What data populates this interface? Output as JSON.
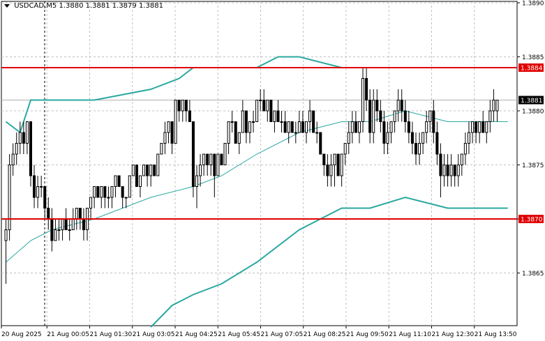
{
  "header": {
    "symbol_label": "USDCAD,M5",
    "ohlc": "1.3880 1.3881 1.3879 1.3881"
  },
  "chart_data": {
    "type": "candlestick",
    "title": "USDCAD,M5",
    "ylim": [
      1.386,
      1.389
    ],
    "y_ticks": [
      "1.3890",
      "1.3885",
      "1.3880",
      "1.3875",
      "1.3870",
      "1.3865"
    ],
    "x_ticks": [
      "20 Aug 2025",
      "21 Aug 00:05",
      "21 Aug 01:30",
      "21 Aug 03:05",
      "21 Aug 04:25",
      "21 Aug 05:45",
      "21 Aug 07:05",
      "21 Aug 08:25",
      "21 Aug 09:50",
      "21 Aug 11:10",
      "21 Aug 12:30",
      "21 Aug 13:50"
    ],
    "horizontal_levels": [
      {
        "value": 1.3884,
        "label": "1.3884",
        "color": "#e00000"
      },
      {
        "value": 1.387,
        "label": "1.3870",
        "color": "#e00000"
      }
    ],
    "current_price": {
      "value": 1.3881,
      "label": "1.3881"
    },
    "grid": true,
    "candles": [
      [
        1.3868,
        1.387,
        1.3864,
        1.3869
      ],
      [
        1.3869,
        1.3876,
        1.3868,
        1.3875
      ],
      [
        1.3875,
        1.3877,
        1.3874,
        1.3876
      ],
      [
        1.3876,
        1.3878,
        1.3875,
        1.3877
      ],
      [
        1.3877,
        1.3879,
        1.3876,
        1.3878
      ],
      [
        1.3878,
        1.3879,
        1.3876,
        1.3877
      ],
      [
        1.3877,
        1.3879,
        1.3876,
        1.3879
      ],
      [
        1.3879,
        1.3879,
        1.3873,
        1.3874
      ],
      [
        1.3874,
        1.3875,
        1.3871,
        1.3872
      ],
      [
        1.3872,
        1.3874,
        1.3871,
        1.3873
      ],
      [
        1.3873,
        1.3874,
        1.3872,
        1.3873
      ],
      [
        1.3873,
        1.3873,
        1.387,
        1.3871
      ],
      [
        1.3871,
        1.3872,
        1.3869,
        1.387
      ],
      [
        1.387,
        1.3871,
        1.3867,
        1.3868
      ],
      [
        1.3868,
        1.387,
        1.3868,
        1.3869
      ],
      [
        1.3869,
        1.387,
        1.3868,
        1.3869
      ],
      [
        1.3869,
        1.387,
        1.3868,
        1.387
      ],
      [
        1.387,
        1.3871,
        1.3869,
        1.3869
      ],
      [
        1.3869,
        1.387,
        1.3868,
        1.3869
      ],
      [
        1.3869,
        1.3871,
        1.3869,
        1.387
      ],
      [
        1.387,
        1.3871,
        1.3869,
        1.3871
      ],
      [
        1.3871,
        1.3871,
        1.3869,
        1.387
      ],
      [
        1.387,
        1.3871,
        1.3868,
        1.3869
      ],
      [
        1.3869,
        1.3871,
        1.3868,
        1.3871
      ],
      [
        1.3871,
        1.3872,
        1.387,
        1.3872
      ],
      [
        1.3872,
        1.3873,
        1.3871,
        1.3873
      ],
      [
        1.3873,
        1.3873,
        1.3872,
        1.3872
      ],
      [
        1.3872,
        1.3873,
        1.3871,
        1.3873
      ],
      [
        1.3873,
        1.3873,
        1.3871,
        1.3872
      ],
      [
        1.3872,
        1.3873,
        1.3871,
        1.3872
      ],
      [
        1.3872,
        1.3873,
        1.3871,
        1.3873
      ],
      [
        1.3873,
        1.3874,
        1.3872,
        1.3874
      ],
      [
        1.3874,
        1.3874,
        1.3873,
        1.3873
      ],
      [
        1.3873,
        1.3873,
        1.3871,
        1.3872
      ],
      [
        1.3872,
        1.3872,
        1.3871,
        1.3872
      ],
      [
        1.3872,
        1.3874,
        1.3872,
        1.3874
      ],
      [
        1.3874,
        1.3875,
        1.3874,
        1.3875
      ],
      [
        1.3875,
        1.3875,
        1.3873,
        1.3873
      ],
      [
        1.3873,
        1.3874,
        1.3872,
        1.3874
      ],
      [
        1.3874,
        1.3875,
        1.3874,
        1.3875
      ],
      [
        1.3875,
        1.3875,
        1.3873,
        1.3874
      ],
      [
        1.3874,
        1.3875,
        1.3873,
        1.3875
      ],
      [
        1.3875,
        1.3875,
        1.3874,
        1.3874
      ],
      [
        1.3874,
        1.3876,
        1.3874,
        1.3876
      ],
      [
        1.3876,
        1.3877,
        1.3876,
        1.3877
      ],
      [
        1.3877,
        1.3879,
        1.3876,
        1.3878
      ],
      [
        1.3878,
        1.3879,
        1.3877,
        1.3879
      ],
      [
        1.3879,
        1.3879,
        1.3876,
        1.3877
      ],
      [
        1.3877,
        1.3881,
        1.3877,
        1.3881
      ],
      [
        1.3881,
        1.3881,
        1.3879,
        1.388
      ],
      [
        1.388,
        1.3881,
        1.3879,
        1.3881
      ],
      [
        1.3881,
        1.3881,
        1.3879,
        1.388
      ],
      [
        1.388,
        1.3881,
        1.3879,
        1.3879
      ],
      [
        1.3879,
        1.3879,
        1.3872,
        1.3873
      ],
      [
        1.3873,
        1.3875,
        1.3871,
        1.3874
      ],
      [
        1.3874,
        1.3876,
        1.3873,
        1.3875
      ],
      [
        1.3875,
        1.3876,
        1.3874,
        1.3876
      ],
      [
        1.3876,
        1.3876,
        1.3874,
        1.3875
      ],
      [
        1.3875,
        1.3876,
        1.3874,
        1.3876
      ],
      [
        1.3876,
        1.3876,
        1.3872,
        1.3874
      ],
      [
        1.3874,
        1.3876,
        1.3874,
        1.3876
      ],
      [
        1.3876,
        1.3876,
        1.3875,
        1.3875
      ],
      [
        1.3875,
        1.3877,
        1.3875,
        1.3877
      ],
      [
        1.3877,
        1.3879,
        1.3876,
        1.3879
      ],
      [
        1.3879,
        1.388,
        1.3878,
        1.3879
      ],
      [
        1.3879,
        1.3879,
        1.3877,
        1.3877
      ],
      [
        1.3877,
        1.3878,
        1.3876,
        1.3878
      ],
      [
        1.3878,
        1.3881,
        1.3878,
        1.388
      ],
      [
        1.388,
        1.388,
        1.3877,
        1.3878
      ],
      [
        1.3878,
        1.3879,
        1.3877,
        1.3879
      ],
      [
        1.3879,
        1.388,
        1.3878,
        1.3879
      ],
      [
        1.3879,
        1.3881,
        1.3879,
        1.3881
      ],
      [
        1.3881,
        1.3882,
        1.388,
        1.3881
      ],
      [
        1.3881,
        1.3882,
        1.388,
        1.388
      ],
      [
        1.388,
        1.3881,
        1.3879,
        1.3881
      ],
      [
        1.3881,
        1.3881,
        1.3879,
        1.3879
      ],
      [
        1.3879,
        1.388,
        1.3878,
        1.388
      ],
      [
        1.388,
        1.3881,
        1.3879,
        1.3879
      ],
      [
        1.3879,
        1.388,
        1.3878,
        1.3879
      ],
      [
        1.3879,
        1.388,
        1.3878,
        1.3878
      ],
      [
        1.3878,
        1.3879,
        1.3877,
        1.3879
      ],
      [
        1.3879,
        1.3879,
        1.3878,
        1.3878
      ],
      [
        1.3878,
        1.3879,
        1.3877,
        1.3878
      ],
      [
        1.3878,
        1.388,
        1.3878,
        1.3879
      ],
      [
        1.3879,
        1.388,
        1.3878,
        1.3878
      ],
      [
        1.3878,
        1.3879,
        1.3877,
        1.3879
      ],
      [
        1.3879,
        1.3881,
        1.3878,
        1.388
      ],
      [
        1.388,
        1.388,
        1.3878,
        1.3878
      ],
      [
        1.3878,
        1.3879,
        1.3877,
        1.3878
      ],
      [
        1.3878,
        1.3878,
        1.3876,
        1.3876
      ],
      [
        1.3876,
        1.3876,
        1.3874,
        1.3875
      ],
      [
        1.3875,
        1.3876,
        1.3873,
        1.3874
      ],
      [
        1.3874,
        1.3876,
        1.3873,
        1.3875
      ],
      [
        1.3875,
        1.3876,
        1.3873,
        1.3876
      ],
      [
        1.3876,
        1.3876,
        1.3874,
        1.3874
      ],
      [
        1.3874,
        1.3876,
        1.3873,
        1.3876
      ],
      [
        1.3876,
        1.3877,
        1.3875,
        1.3877
      ],
      [
        1.3877,
        1.3879,
        1.3876,
        1.3878
      ],
      [
        1.3878,
        1.388,
        1.3877,
        1.3879
      ],
      [
        1.3879,
        1.388,
        1.3878,
        1.3878
      ],
      [
        1.3878,
        1.3879,
        1.3877,
        1.3879
      ],
      [
        1.3879,
        1.3884,
        1.3878,
        1.3883
      ],
      [
        1.3883,
        1.3884,
        1.388,
        1.3881
      ],
      [
        1.3881,
        1.3882,
        1.3877,
        1.3878
      ],
      [
        1.3878,
        1.3882,
        1.3877,
        1.3881
      ],
      [
        1.3881,
        1.3882,
        1.3879,
        1.388
      ],
      [
        1.388,
        1.3881,
        1.3878,
        1.3879
      ],
      [
        1.3879,
        1.388,
        1.3876,
        1.3877
      ],
      [
        1.3877,
        1.3879,
        1.3876,
        1.3878
      ],
      [
        1.3878,
        1.3879,
        1.3877,
        1.3879
      ],
      [
        1.3879,
        1.388,
        1.3878,
        1.388
      ],
      [
        1.388,
        1.3882,
        1.3879,
        1.3881
      ],
      [
        1.3881,
        1.3882,
        1.3879,
        1.388
      ],
      [
        1.388,
        1.3881,
        1.3878,
        1.3879
      ],
      [
        1.3879,
        1.388,
        1.3877,
        1.3878
      ],
      [
        1.3878,
        1.3879,
        1.3876,
        1.3877
      ],
      [
        1.3877,
        1.3878,
        1.3875,
        1.3876
      ],
      [
        1.3876,
        1.3878,
        1.3875,
        1.3877
      ],
      [
        1.3877,
        1.3878,
        1.3876,
        1.3878
      ],
      [
        1.3878,
        1.388,
        1.3877,
        1.3879
      ],
      [
        1.3879,
        1.388,
        1.3878,
        1.388
      ],
      [
        1.388,
        1.3881,
        1.3877,
        1.3878
      ],
      [
        1.3878,
        1.3879,
        1.3875,
        1.3876
      ],
      [
        1.3876,
        1.3877,
        1.3872,
        1.3874
      ],
      [
        1.3874,
        1.3876,
        1.3873,
        1.3875
      ],
      [
        1.3875,
        1.3876,
        1.3873,
        1.3874
      ],
      [
        1.3874,
        1.3876,
        1.3873,
        1.3875
      ],
      [
        1.3875,
        1.3875,
        1.3873,
        1.3874
      ],
      [
        1.3874,
        1.3876,
        1.3873,
        1.3875
      ],
      [
        1.3875,
        1.3876,
        1.3874,
        1.3876
      ],
      [
        1.3876,
        1.3878,
        1.3875,
        1.3877
      ],
      [
        1.3877,
        1.3879,
        1.3876,
        1.3878
      ],
      [
        1.3878,
        1.3879,
        1.3877,
        1.3879
      ],
      [
        1.3879,
        1.3879,
        1.3877,
        1.3878
      ],
      [
        1.3878,
        1.3879,
        1.3877,
        1.3879
      ],
      [
        1.3879,
        1.388,
        1.3878,
        1.3878
      ],
      [
        1.3878,
        1.3879,
        1.3877,
        1.3879
      ],
      [
        1.3879,
        1.3881,
        1.3878,
        1.388
      ],
      [
        1.388,
        1.3882,
        1.3879,
        1.3881
      ],
      [
        1.388,
        1.3881,
        1.3879,
        1.3881
      ]
    ],
    "bollinger_period_note": "",
    "bands": {
      "upper": [
        [
          0,
          1.3879
        ],
        [
          4,
          1.3878
        ],
        [
          7,
          1.3881
        ],
        [
          13,
          1.3881
        ],
        [
          25,
          1.3881
        ],
        [
          41,
          1.3882
        ],
        [
          49,
          1.3883
        ],
        [
          53,
          1.3884
        ],
        [
          61,
          1.3884
        ],
        [
          71,
          1.3884
        ],
        [
          77,
          1.3885
        ],
        [
          83,
          1.3885
        ],
        [
          95,
          1.3884
        ],
        [
          103,
          1.3884
        ],
        [
          113,
          1.3884
        ],
        [
          125,
          1.3884
        ],
        [
          135,
          1.3884
        ],
        [
          142,
          1.3884
        ]
      ],
      "middle": [
        [
          0,
          1.3866
        ],
        [
          7,
          1.3868
        ],
        [
          13,
          1.3869
        ],
        [
          25,
          1.387
        ],
        [
          41,
          1.3872
        ],
        [
          53,
          1.3873
        ],
        [
          61,
          1.3874
        ],
        [
          71,
          1.3876
        ],
        [
          83,
          1.3878
        ],
        [
          95,
          1.3879
        ],
        [
          103,
          1.3879
        ],
        [
          113,
          1.388
        ],
        [
          125,
          1.3879
        ],
        [
          135,
          1.3879
        ],
        [
          142,
          1.3879
        ]
      ],
      "lower": [
        [
          41,
          1.386
        ],
        [
          47,
          1.3862
        ],
        [
          53,
          1.3863
        ],
        [
          61,
          1.3864
        ],
        [
          71,
          1.3866
        ],
        [
          83,
          1.3869
        ],
        [
          95,
          1.3871
        ],
        [
          103,
          1.3871
        ],
        [
          113,
          1.3872
        ],
        [
          125,
          1.3871
        ],
        [
          135,
          1.3871
        ],
        [
          142,
          1.3871
        ]
      ]
    }
  }
}
